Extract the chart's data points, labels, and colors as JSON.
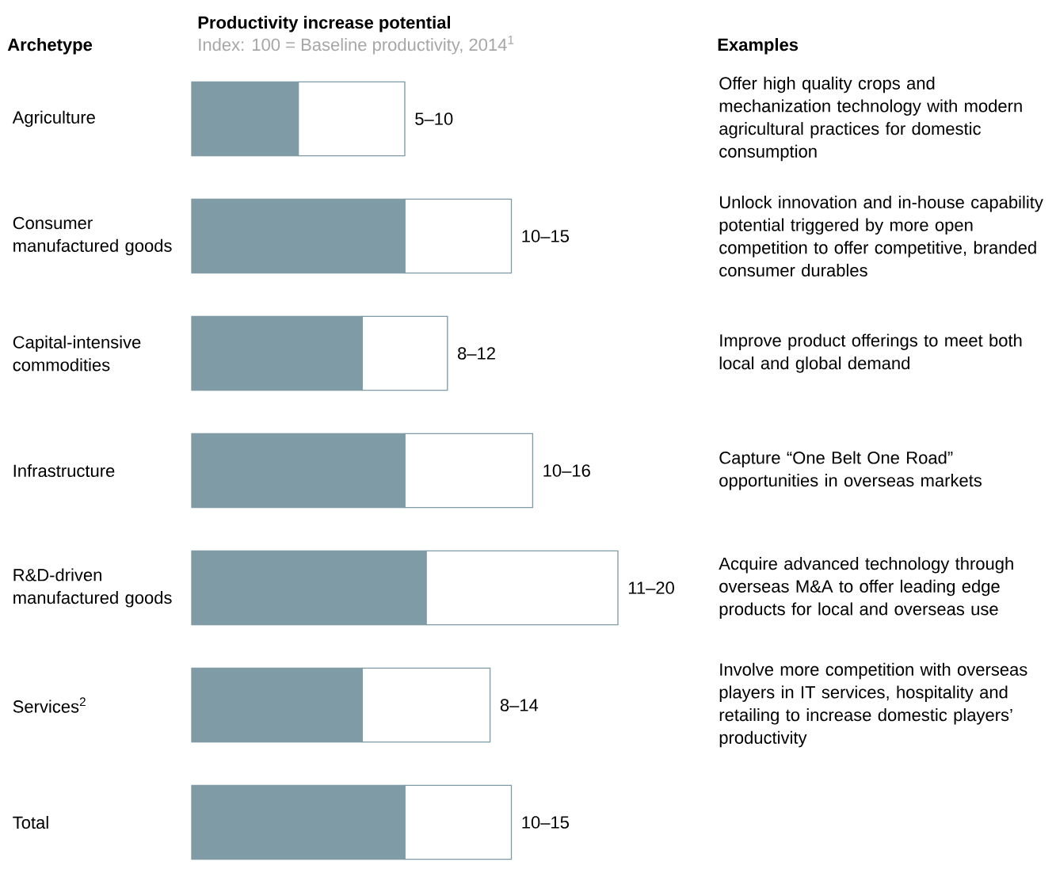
{
  "chart_data": {
    "type": "bar",
    "orientation": "horizontal",
    "stacked": true,
    "title": "Productivity increase potential",
    "subtitle": "Index: 100 = Baseline productivity, 2014$^{1}$",
    "categories": [
      "Agriculture",
      "Consumer manufactured goods",
      "Capital-intensive commodities",
      "Infrastructure",
      "R&D-driven manufactured goods",
      "Services$^{2}$",
      "Total"
    ],
    "series": [
      {
        "color": "#7f9ba6",
        "values": [
          5,
          10,
          8,
          10,
          11,
          8,
          10
        ]
      },
      {
        "color": "#ffffff",
        "values": [
          5,
          5,
          4,
          6,
          9,
          6,
          5
        ],
        "value_labels": [
          "5–10",
          "10–15",
          "8–12",
          "10–16",
          "11–20",
          "8–14",
          "10–15"
        ]
      }
    ],
    "xlim": [
      0,
      20
    ],
    "tick_labels": "y",
    "annotations": [
      "Archetype",
      "Examples",
      "Offer high quality crops and mechanization technology with modern agricultural practices for domestic consumption",
      "Unlock innovation and in-house capability potential triggered by more open competition to offer competitive, branded consumer durables",
      "Improve product offerings to meet both local and global demand",
      "Capture “One Belt One Road” opportunities in overseas markets",
      "Acquire advanced technology through overseas M&A to offer leading edge products for local and overseas use",
      "Involve more competition with overseas players in IT services, hospitality and retailing to increase domestic players’ productivity"
    ]
  }
}
